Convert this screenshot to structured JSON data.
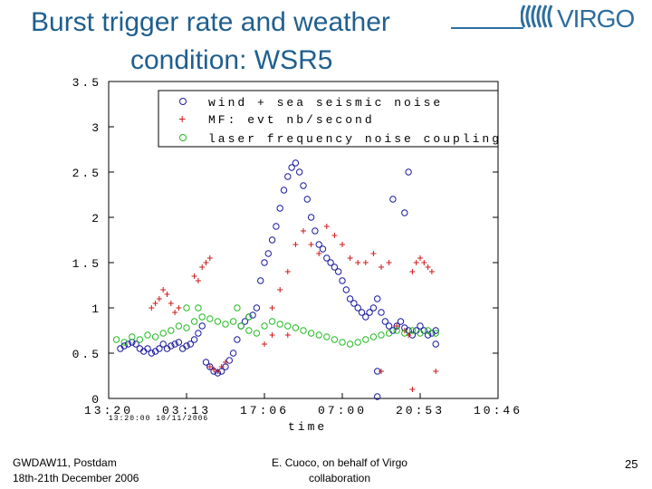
{
  "slide": {
    "title_line1": "Burst trigger rate and weather",
    "title_line2": "condition: WSR5",
    "logo_text": "VIRGO",
    "footer_left_line1": "GWDAW11,  Postdam",
    "footer_left_line2": "18th-21th December 2006",
    "footer_mid_line1": "E. Cuoco, on behalf of Virgo",
    "footer_mid_line2": "collaboration",
    "page_number": "25"
  },
  "colors": {
    "title": "#1f5f8f",
    "series_wind": "#1a1aa0",
    "series_mf": "#cc1a1a",
    "series_laser": "#22bb22"
  },
  "chart_data": {
    "type": "scatter",
    "title": "",
    "xlabel": "time",
    "ylabel": "",
    "xlim": [
      0,
      5
    ],
    "ylim": [
      0,
      3.5
    ],
    "x_tick_labels": [
      "13:20",
      "03:13",
      "17:06",
      "07:00",
      "20:53",
      "10:46"
    ],
    "x_tick_sublabel": "13:20:00 10/11/2006",
    "y_tick_labels": [
      "0",
      "0.5",
      "1",
      "1.5",
      "2",
      "2.5",
      "3",
      "3.5"
    ],
    "y_ticks": [
      0,
      0.5,
      1,
      1.5,
      2,
      2.5,
      3,
      3.5
    ],
    "legend": [
      {
        "label": "wind + sea seismic noise",
        "marker": "o",
        "color": "#1a1aa0"
      },
      {
        "label": "MF: evt nb/second",
        "marker": "+",
        "color": "#cc1a1a"
      },
      {
        "label": "laser frequency noise coupling",
        "marker": "o",
        "color": "#22bb22"
      }
    ],
    "legend_position": "top-right",
    "series": [
      {
        "name": "wind + sea seismic noise",
        "marker": "o",
        "points": [
          [
            0.15,
            0.55
          ],
          [
            0.2,
            0.58
          ],
          [
            0.25,
            0.6
          ],
          [
            0.3,
            0.62
          ],
          [
            0.35,
            0.6
          ],
          [
            0.4,
            0.55
          ],
          [
            0.45,
            0.52
          ],
          [
            0.5,
            0.55
          ],
          [
            0.55,
            0.5
          ],
          [
            0.6,
            0.52
          ],
          [
            0.65,
            0.55
          ],
          [
            0.7,
            0.6
          ],
          [
            0.75,
            0.55
          ],
          [
            0.8,
            0.58
          ],
          [
            0.85,
            0.6
          ],
          [
            0.9,
            0.62
          ],
          [
            0.95,
            0.55
          ],
          [
            1.0,
            0.58
          ],
          [
            1.05,
            0.6
          ],
          [
            1.1,
            0.65
          ],
          [
            1.15,
            0.72
          ],
          [
            1.2,
            0.8
          ],
          [
            1.25,
            0.4
          ],
          [
            1.3,
            0.35
          ],
          [
            1.35,
            0.3
          ],
          [
            1.4,
            0.28
          ],
          [
            1.45,
            0.3
          ],
          [
            1.5,
            0.35
          ],
          [
            1.55,
            0.42
          ],
          [
            1.6,
            0.5
          ],
          [
            1.65,
            0.65
          ],
          [
            1.7,
            0.8
          ],
          [
            1.75,
            0.85
          ],
          [
            1.8,
            0.9
          ],
          [
            1.85,
            0.92
          ],
          [
            1.9,
            1.0
          ],
          [
            1.95,
            1.3
          ],
          [
            2.0,
            1.5
          ],
          [
            2.05,
            1.6
          ],
          [
            2.1,
            1.75
          ],
          [
            2.15,
            1.9
          ],
          [
            2.2,
            2.1
          ],
          [
            2.25,
            2.3
          ],
          [
            2.3,
            2.45
          ],
          [
            2.35,
            2.55
          ],
          [
            2.4,
            2.6
          ],
          [
            2.45,
            2.5
          ],
          [
            2.5,
            2.35
          ],
          [
            2.55,
            2.2
          ],
          [
            2.6,
            2.0
          ],
          [
            2.65,
            1.85
          ],
          [
            2.7,
            1.7
          ],
          [
            2.75,
            1.65
          ],
          [
            2.8,
            1.55
          ],
          [
            2.85,
            1.5
          ],
          [
            2.9,
            1.45
          ],
          [
            2.95,
            1.4
          ],
          [
            3.0,
            1.3
          ],
          [
            3.05,
            1.2
          ],
          [
            3.1,
            1.1
          ],
          [
            3.15,
            1.05
          ],
          [
            3.2,
            1.0
          ],
          [
            3.25,
            0.95
          ],
          [
            3.3,
            0.9
          ],
          [
            3.35,
            0.95
          ],
          [
            3.4,
            1.0
          ],
          [
            3.45,
            1.1
          ],
          [
            3.5,
            0.95
          ],
          [
            3.55,
            0.85
          ],
          [
            3.6,
            0.8
          ],
          [
            3.65,
            0.75
          ],
          [
            3.7,
            0.8
          ],
          [
            3.75,
            0.85
          ],
          [
            3.8,
            0.78
          ],
          [
            3.85,
            0.75
          ],
          [
            3.9,
            0.7
          ],
          [
            3.95,
            0.75
          ],
          [
            4.0,
            0.8
          ],
          [
            4.05,
            0.75
          ],
          [
            4.1,
            0.7
          ],
          [
            4.15,
            0.72
          ],
          [
            4.2,
            0.75
          ],
          [
            3.45,
            0.3
          ],
          [
            3.45,
            0.02
          ],
          [
            3.65,
            2.2
          ],
          [
            3.85,
            2.5
          ],
          [
            3.8,
            2.05
          ],
          [
            4.2,
            0.6
          ]
        ]
      },
      {
        "name": "MF: evt nb/second",
        "marker": "+",
        "points": [
          [
            0.55,
            1.0
          ],
          [
            0.6,
            1.05
          ],
          [
            0.65,
            1.1
          ],
          [
            0.7,
            1.2
          ],
          [
            0.75,
            1.15
          ],
          [
            0.8,
            1.05
          ],
          [
            0.85,
            0.95
          ],
          [
            0.9,
            1.0
          ],
          [
            1.15,
            1.3
          ],
          [
            1.2,
            1.45
          ],
          [
            1.25,
            1.5
          ],
          [
            1.3,
            1.55
          ],
          [
            1.1,
            1.35
          ],
          [
            1.3,
            0.35
          ],
          [
            1.35,
            0.32
          ],
          [
            1.4,
            0.3
          ],
          [
            1.45,
            0.35
          ],
          [
            1.5,
            0.4
          ],
          [
            2.0,
            0.6
          ],
          [
            2.1,
            1.0
          ],
          [
            2.2,
            1.2
          ],
          [
            2.3,
            1.4
          ],
          [
            2.4,
            1.7
          ],
          [
            2.5,
            1.85
          ],
          [
            2.6,
            1.7
          ],
          [
            2.7,
            1.6
          ],
          [
            2.8,
            1.9
          ],
          [
            2.9,
            1.8
          ],
          [
            3.0,
            1.7
          ],
          [
            3.1,
            1.55
          ],
          [
            3.2,
            1.5
          ],
          [
            3.3,
            1.5
          ],
          [
            3.4,
            1.6
          ],
          [
            3.5,
            1.45
          ],
          [
            3.6,
            1.5
          ],
          [
            3.7,
            0.8
          ],
          [
            3.8,
            0.75
          ],
          [
            3.85,
            0.7
          ],
          [
            3.9,
            1.4
          ],
          [
            3.95,
            1.5
          ],
          [
            4.0,
            1.55
          ],
          [
            4.05,
            1.5
          ],
          [
            4.1,
            1.45
          ],
          [
            4.15,
            1.4
          ],
          [
            3.5,
            0.3
          ],
          [
            3.9,
            0.1
          ],
          [
            4.2,
            0.3
          ],
          [
            2.3,
            0.7
          ],
          [
            2.1,
            0.7
          ]
        ]
      },
      {
        "name": "laser frequency noise coupling",
        "marker": "o",
        "points": [
          [
            0.1,
            0.65
          ],
          [
            0.2,
            0.62
          ],
          [
            0.3,
            0.68
          ],
          [
            0.4,
            0.65
          ],
          [
            0.5,
            0.7
          ],
          [
            0.6,
            0.68
          ],
          [
            0.7,
            0.72
          ],
          [
            0.8,
            0.75
          ],
          [
            0.9,
            0.8
          ],
          [
            1.0,
            0.78
          ],
          [
            1.1,
            0.85
          ],
          [
            1.2,
            0.9
          ],
          [
            1.3,
            0.88
          ],
          [
            1.4,
            0.85
          ],
          [
            1.5,
            0.82
          ],
          [
            1.6,
            0.85
          ],
          [
            1.7,
            0.8
          ],
          [
            1.8,
            0.75
          ],
          [
            1.9,
            0.72
          ],
          [
            2.0,
            0.8
          ],
          [
            2.1,
            0.85
          ],
          [
            2.2,
            0.82
          ],
          [
            2.3,
            0.8
          ],
          [
            2.4,
            0.78
          ],
          [
            2.5,
            0.75
          ],
          [
            2.6,
            0.72
          ],
          [
            2.7,
            0.7
          ],
          [
            2.8,
            0.68
          ],
          [
            2.9,
            0.65
          ],
          [
            3.0,
            0.62
          ],
          [
            3.1,
            0.6
          ],
          [
            3.2,
            0.62
          ],
          [
            3.3,
            0.65
          ],
          [
            3.4,
            0.68
          ],
          [
            3.5,
            0.7
          ],
          [
            3.6,
            0.72
          ],
          [
            3.7,
            0.75
          ],
          [
            3.8,
            0.72
          ],
          [
            3.9,
            0.75
          ],
          [
            4.0,
            0.72
          ],
          [
            4.1,
            0.75
          ],
          [
            4.2,
            0.72
          ],
          [
            1.0,
            1.0
          ],
          [
            1.15,
            1.0
          ],
          [
            1.8,
            0.9
          ],
          [
            1.65,
            1.0
          ]
        ]
      }
    ]
  }
}
